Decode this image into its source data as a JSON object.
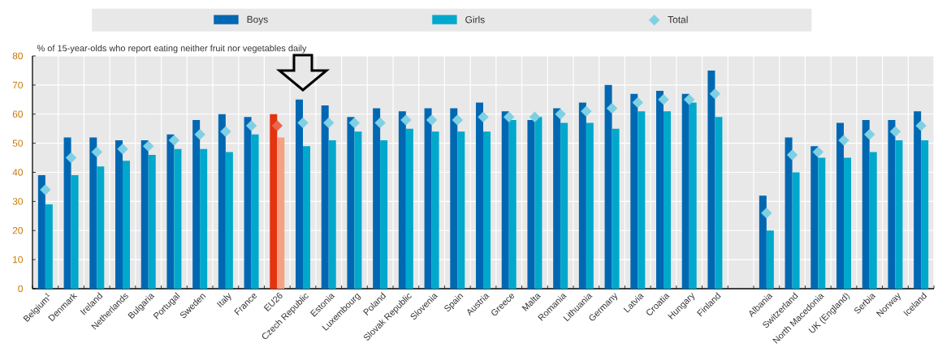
{
  "chart_data": {
    "type": "bar",
    "ylabel": "% of 15-year-olds who report eating neither fruit nor vegetables daily",
    "categories": [
      "Belgium$^{1}$",
      "Denmark",
      "Ireland",
      "Netherlands",
      "Bulgaria",
      "Portugal",
      "Sweden",
      "Italy",
      "France",
      "EU26",
      "Czech Republic",
      "Estonia",
      "Luxembourg",
      "Poland",
      "Slovak Republic",
      "Slovenia",
      "Spain",
      "Austria",
      "Greece",
      "Malta",
      "Romania",
      "Lithuania",
      "Germany",
      "Latvia",
      "Croatia",
      "Hungary",
      "Finland",
      null,
      "Albania",
      "Switzerland",
      "North Macedonia",
      "UK (England)",
      "Serbia",
      "Norway",
      "Iceland"
    ],
    "series": [
      {
        "name": "Boys",
        "color": "#0068b3",
        "colors": [
          "#0068b3",
          "#0068b3",
          "#0068b3",
          "#0068b3",
          "#0068b3",
          "#0068b3",
          "#0068b3",
          "#0068b3",
          "#0068b3",
          "#e5330f",
          "#0068b3",
          "#0068b3",
          "#0068b3",
          "#0068b3",
          "#0068b3",
          "#0068b3",
          "#0068b3",
          "#0068b3",
          "#0068b3",
          "#0068b3",
          "#0068b3",
          "#0068b3",
          "#0068b3",
          "#0068b3",
          "#0068b3",
          "#0068b3",
          "#0068b3",
          "#0068b3",
          "#0068b3",
          "#0068b3",
          "#0068b3",
          "#0068b3",
          "#0068b3",
          "#0068b3",
          "#0068b3"
        ],
        "values": [
          39,
          52,
          52,
          51,
          51,
          53,
          58,
          60,
          59,
          60,
          65,
          63,
          59,
          62,
          61,
          62,
          62,
          64,
          61,
          58,
          62,
          64,
          70,
          67,
          68,
          67,
          75,
          null,
          32,
          52,
          49,
          57,
          58,
          58,
          61
        ]
      },
      {
        "name": "Girls",
        "color": "#00a8cc",
        "colors": [
          "#00a8cc",
          "#00a8cc",
          "#00a8cc",
          "#00a8cc",
          "#00a8cc",
          "#00a8cc",
          "#00a8cc",
          "#00a8cc",
          "#00a8cc",
          "#f7a083",
          "#00a8cc",
          "#00a8cc",
          "#00a8cc",
          "#00a8cc",
          "#00a8cc",
          "#00a8cc",
          "#00a8cc",
          "#00a8cc",
          "#00a8cc",
          "#00a8cc",
          "#00a8cc",
          "#00a8cc",
          "#00a8cc",
          "#00a8cc",
          "#00a8cc",
          "#00a8cc",
          "#00a8cc",
          "#00a8cc",
          "#00a8cc",
          "#00a8cc",
          "#00a8cc",
          "#00a8cc",
          "#00a8cc",
          "#00a8cc",
          "#00a8cc"
        ],
        "values": [
          29,
          39,
          42,
          44,
          46,
          48,
          48,
          47,
          53,
          52,
          49,
          51,
          54,
          51,
          55,
          54,
          54,
          54,
          58,
          59,
          57,
          57,
          55,
          61,
          61,
          64,
          59,
          null,
          20,
          40,
          45,
          45,
          47,
          51,
          51
        ]
      },
      {
        "name": "Total",
        "type": "scatter",
        "color": "#7fd0e3",
        "colors": [
          "#7fd0e3",
          "#7fd0e3",
          "#7fd0e3",
          "#7fd0e3",
          "#7fd0e3",
          "#7fd0e3",
          "#7fd0e3",
          "#7fd0e3",
          "#7fd0e3",
          "#e8674f",
          "#7fd0e3",
          "#7fd0e3",
          "#7fd0e3",
          "#7fd0e3",
          "#7fd0e3",
          "#7fd0e3",
          "#7fd0e3",
          "#7fd0e3",
          "#7fd0e3",
          "#7fd0e3",
          "#7fd0e3",
          "#7fd0e3",
          "#7fd0e3",
          "#7fd0e3",
          "#7fd0e3",
          "#7fd0e3",
          "#7fd0e3",
          "#7fd0e3",
          "#7fd0e3",
          "#7fd0e3",
          "#7fd0e3",
          "#7fd0e3",
          "#7fd0e3",
          "#7fd0e3",
          "#7fd0e3"
        ],
        "values": [
          34,
          45,
          47,
          48,
          49,
          51,
          53,
          54,
          56,
          56,
          57,
          57,
          57,
          57,
          58,
          58,
          58,
          59,
          59,
          59,
          60,
          61,
          62,
          64,
          65,
          65,
          67,
          null,
          26,
          46,
          47,
          51,
          53,
          54,
          56
        ]
      }
    ],
    "ylim": [
      0,
      80
    ],
    "yticks": [
      0,
      10,
      20,
      30,
      40,
      50,
      60,
      70,
      80
    ],
    "grid": true,
    "legend": "top",
    "marker": "diamond"
  }
}
